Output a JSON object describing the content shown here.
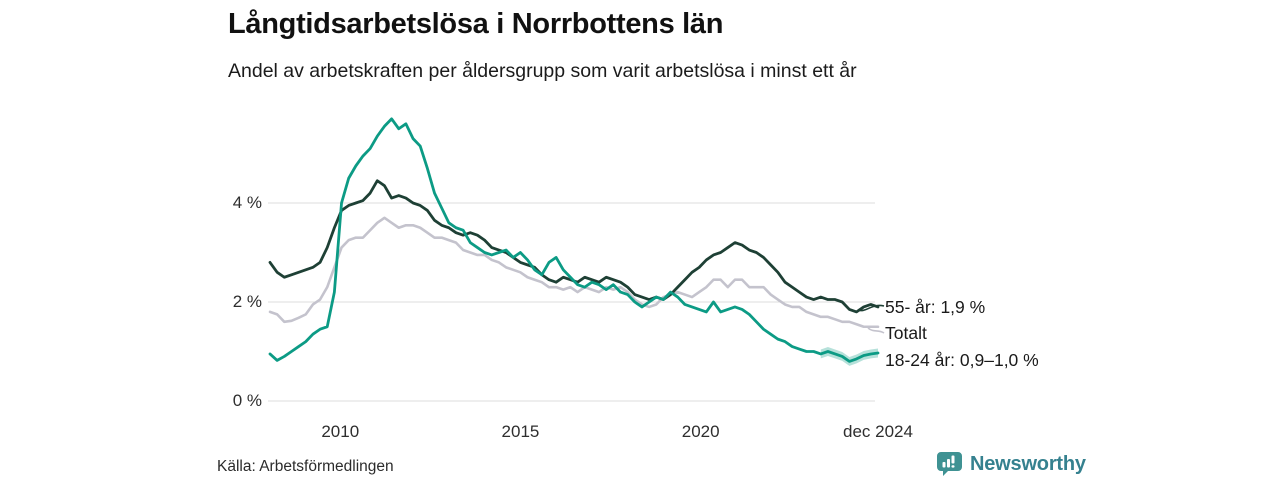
{
  "header": {
    "title": "Långtidsarbetslösa i Norrbottens län",
    "subtitle": "Andel av arbetskraften per åldersgrupp som varit arbetslösa i minst ett år"
  },
  "chart_data": {
    "type": "line",
    "title": "Långtidsarbetslösa i Norrbottens län",
    "subtitle": "Andel av arbetskraften per åldersgrupp som varit arbetslösa i minst ett år",
    "unit": "%",
    "x_start": 2008.05,
    "x_end": 2024.92,
    "ylim": [
      0,
      5.9
    ],
    "grid": true,
    "legend_position": "right-end-labels",
    "x_ticks": [
      {
        "label": "2010",
        "year": 2010
      },
      {
        "label": "2015",
        "year": 2015
      },
      {
        "label": "2020",
        "year": 2020
      },
      {
        "label": "dec 2024",
        "year": 2024.92
      }
    ],
    "y_ticks": [
      {
        "label": "4 %",
        "value": 4
      },
      {
        "label": "2 %",
        "value": 2
      },
      {
        "label": "0 %",
        "value": 0
      }
    ],
    "series": [
      {
        "name": "Totalt",
        "color": "#c4c3cd",
        "end_label": "Totalt",
        "values": [
          1.8,
          1.75,
          1.6,
          1.62,
          1.68,
          1.75,
          1.95,
          2.05,
          2.3,
          2.7,
          3.1,
          3.25,
          3.3,
          3.3,
          3.45,
          3.6,
          3.7,
          3.6,
          3.5,
          3.55,
          3.55,
          3.5,
          3.4,
          3.3,
          3.3,
          3.25,
          3.2,
          3.05,
          3.0,
          2.95,
          2.95,
          2.85,
          2.8,
          2.7,
          2.65,
          2.6,
          2.5,
          2.45,
          2.4,
          2.3,
          2.3,
          2.25,
          2.3,
          2.2,
          2.3,
          2.25,
          2.2,
          2.3,
          2.25,
          2.3,
          2.2,
          2.05,
          1.95,
          1.9,
          1.95,
          2.1,
          2.15,
          2.2,
          2.15,
          2.1,
          2.2,
          2.3,
          2.45,
          2.45,
          2.3,
          2.45,
          2.45,
          2.3,
          2.3,
          2.3,
          2.15,
          2.05,
          1.95,
          1.9,
          1.9,
          1.8,
          1.75,
          1.7,
          1.7,
          1.65,
          1.6,
          1.6,
          1.55,
          1.5,
          1.5,
          1.5
        ]
      },
      {
        "name": "55- år",
        "color": "#1e4035",
        "end_label": "55- år: 1,9 %",
        "end_value_text": "1,9 %",
        "values": [
          2.8,
          2.6,
          2.5,
          2.55,
          2.6,
          2.65,
          2.7,
          2.8,
          3.1,
          3.5,
          3.85,
          3.95,
          4.0,
          4.05,
          4.2,
          4.45,
          4.35,
          4.1,
          4.15,
          4.1,
          4.0,
          3.95,
          3.85,
          3.65,
          3.55,
          3.5,
          3.4,
          3.35,
          3.4,
          3.35,
          3.25,
          3.1,
          3.05,
          3.0,
          2.9,
          2.8,
          2.75,
          2.7,
          2.55,
          2.45,
          2.4,
          2.5,
          2.45,
          2.4,
          2.5,
          2.45,
          2.4,
          2.5,
          2.45,
          2.4,
          2.3,
          2.15,
          2.1,
          2.05,
          2.1,
          2.05,
          2.15,
          2.3,
          2.45,
          2.6,
          2.7,
          2.85,
          2.95,
          3.0,
          3.1,
          3.2,
          3.15,
          3.05,
          3.0,
          2.9,
          2.75,
          2.6,
          2.4,
          2.3,
          2.2,
          2.1,
          2.05,
          2.1,
          2.05,
          2.05,
          2.0,
          1.85,
          1.8,
          1.9,
          1.95,
          1.9
        ]
      },
      {
        "name": "18-24 år",
        "color": "#0c9b85",
        "end_label": "18-24 år: 0,9–1,0 %",
        "end_value_text": "0,9–1,0 %",
        "band": {
          "start_index": 77,
          "halfwidth": 0.09,
          "color": "rgba(12,155,133,0.30)"
        },
        "values": [
          0.95,
          0.82,
          0.9,
          1.0,
          1.1,
          1.2,
          1.35,
          1.45,
          1.5,
          2.2,
          4.0,
          4.5,
          4.75,
          4.95,
          5.1,
          5.35,
          5.55,
          5.7,
          5.5,
          5.6,
          5.3,
          5.15,
          4.7,
          4.2,
          3.9,
          3.6,
          3.5,
          3.45,
          3.2,
          3.1,
          3.0,
          2.95,
          3.0,
          3.05,
          2.9,
          3.0,
          2.85,
          2.65,
          2.55,
          2.8,
          2.9,
          2.65,
          2.5,
          2.35,
          2.3,
          2.4,
          2.35,
          2.25,
          2.35,
          2.2,
          2.15,
          2.0,
          1.9,
          2.0,
          2.1,
          2.05,
          2.2,
          2.1,
          1.95,
          1.9,
          1.85,
          1.8,
          2.0,
          1.8,
          1.85,
          1.9,
          1.85,
          1.75,
          1.6,
          1.45,
          1.35,
          1.25,
          1.2,
          1.1,
          1.05,
          1.0,
          1.0,
          0.95,
          1.0,
          0.95,
          0.9,
          0.8,
          0.85,
          0.92,
          0.95,
          0.97
        ]
      }
    ]
  },
  "end_labels": {
    "older": "55- år: 1,9 %",
    "total": "Totalt",
    "young": "18-24 år: 0,9–1,0 %"
  },
  "footer": {
    "source": "Källa: Arbetsförmedlingen",
    "brand": "Newsworthy"
  },
  "colors": {
    "series_older": "#1e4035",
    "series_total": "#c4c3cd",
    "series_young": "#0c9b85",
    "band": "rgba(12,155,133,0.30)",
    "grid": "#dcdcdc",
    "brand_teal": "#3f9293",
    "brand_text": "#35818f"
  }
}
